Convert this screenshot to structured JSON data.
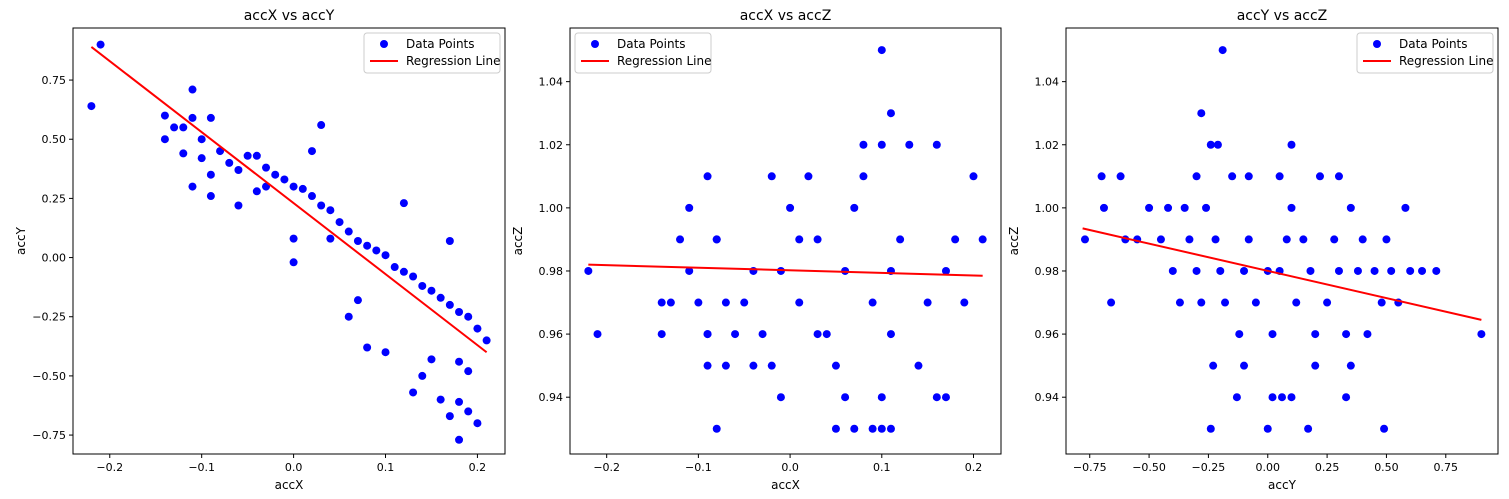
{
  "chart_data": [
    {
      "type": "scatter",
      "title": "accX vs accY",
      "xlabel": "accX",
      "ylabel": "accY",
      "xlim": [
        -0.24,
        0.23
      ],
      "ylim": [
        -0.83,
        0.97
      ],
      "xticks": [
        -0.2,
        -0.1,
        0.0,
        0.1,
        0.2
      ],
      "xtick_labels": [
        "−0.2",
        "−0.1",
        "0.0",
        "0.1",
        "0.2"
      ],
      "yticks": [
        -0.75,
        -0.5,
        -0.25,
        0.0,
        0.25,
        0.5,
        0.75
      ],
      "ytick_labels": [
        "−0.75",
        "−0.50",
        "−0.25",
        "0.00",
        "0.25",
        "0.50",
        "0.75"
      ],
      "legend_placement": "upper right",
      "series": [
        {
          "name": "Data Points",
          "kind": "points",
          "color": "#0000ff",
          "x": [
            -0.22,
            -0.21,
            -0.14,
            -0.14,
            -0.13,
            -0.12,
            -0.12,
            -0.11,
            -0.11,
            -0.1,
            -0.1,
            -0.09,
            -0.09,
            -0.08,
            -0.07,
            -0.06,
            -0.05,
            -0.04,
            -0.03,
            -0.02,
            -0.01,
            0.0,
            0.01,
            0.02,
            0.03,
            0.04,
            0.05,
            0.06,
            0.07,
            0.08,
            0.09,
            0.1,
            0.11,
            0.12,
            0.13,
            0.14,
            0.15,
            0.16,
            0.17,
            0.18,
            0.19,
            0.2,
            0.21,
            -0.11,
            -0.09,
            -0.06,
            -0.03,
            0.0,
            0.02,
            0.03,
            0.04,
            0.07,
            0.08,
            0.1,
            0.13,
            0.14,
            0.16,
            0.17,
            0.18,
            0.18,
            0.19,
            0.2,
            0.19,
            0.18,
            0.17,
            -0.04,
            0.0,
            0.06,
            0.12,
            0.15
          ],
          "y": [
            0.64,
            0.9,
            0.6,
            0.5,
            0.55,
            0.55,
            0.44,
            0.59,
            0.71,
            0.5,
            0.42,
            0.59,
            0.35,
            0.45,
            0.4,
            0.37,
            0.43,
            0.43,
            0.38,
            0.35,
            0.33,
            0.3,
            0.29,
            0.26,
            0.22,
            0.2,
            0.15,
            0.11,
            0.07,
            0.05,
            0.03,
            0.01,
            -0.04,
            -0.06,
            -0.08,
            -0.12,
            -0.14,
            -0.17,
            -0.2,
            -0.23,
            -0.25,
            -0.3,
            -0.35,
            0.3,
            0.26,
            0.22,
            0.3,
            0.08,
            0.45,
            0.56,
            0.08,
            -0.18,
            -0.38,
            -0.4,
            -0.57,
            -0.5,
            -0.6,
            -0.67,
            -0.61,
            -0.77,
            -0.65,
            -0.7,
            -0.48,
            -0.44,
            0.07,
            0.28,
            -0.02,
            -0.25,
            0.23,
            -0.43
          ]
        },
        {
          "name": "Regression Line",
          "kind": "line",
          "color": "#ff0000",
          "x": [
            -0.22,
            0.21
          ],
          "y": [
            0.89,
            -0.4
          ]
        }
      ]
    },
    {
      "type": "scatter",
      "title": "accX vs accZ",
      "xlabel": "accX",
      "ylabel": "accZ",
      "xlim": [
        -0.24,
        0.23
      ],
      "ylim": [
        0.922,
        1.057
      ],
      "xticks": [
        -0.2,
        -0.1,
        0.0,
        0.1,
        0.2
      ],
      "xtick_labels": [
        "−0.2",
        "−0.1",
        "0.0",
        "0.1",
        "0.2"
      ],
      "yticks": [
        0.94,
        0.96,
        0.98,
        1.0,
        1.02,
        1.04
      ],
      "ytick_labels": [
        "0.94",
        "0.96",
        "0.98",
        "1.00",
        "1.02",
        "1.04"
      ],
      "legend_placement": "upper left",
      "series": [
        {
          "name": "Data Points",
          "kind": "points",
          "color": "#0000ff",
          "x": [
            -0.22,
            -0.21,
            -0.14,
            -0.14,
            -0.13,
            -0.12,
            -0.11,
            -0.11,
            -0.1,
            -0.09,
            -0.09,
            -0.09,
            -0.08,
            -0.08,
            -0.07,
            -0.06,
            -0.05,
            -0.04,
            -0.03,
            -0.02,
            -0.01,
            0.0,
            0.01,
            0.02,
            0.03,
            0.04,
            0.05,
            0.06,
            0.07,
            0.08,
            0.09,
            0.1,
            0.1,
            0.11,
            0.11,
            0.12,
            0.13,
            0.14,
            0.15,
            0.16,
            0.17,
            0.18,
            0.19,
            0.2,
            0.21,
            0.05,
            0.07,
            0.1,
            0.11,
            -0.01,
            0.01,
            0.03,
            0.06,
            0.09,
            0.16,
            0.17,
            -0.09,
            -0.07,
            -0.04,
            -0.02,
            0.08,
            -0.08,
            0.1,
            0.11
          ],
          "y": [
            0.98,
            0.96,
            0.96,
            0.97,
            0.97,
            0.99,
            1.0,
            0.98,
            0.97,
            0.95,
            0.96,
            1.01,
            0.93,
            0.99,
            0.95,
            0.96,
            0.97,
            0.98,
            0.96,
            0.95,
            0.94,
            1.0,
            0.97,
            1.01,
            0.99,
            0.96,
            0.95,
            0.98,
            1.0,
            1.02,
            0.97,
            1.05,
            0.94,
            1.03,
            0.96,
            0.99,
            1.02,
            0.95,
            0.97,
            1.02,
            0.98,
            0.99,
            0.97,
            1.01,
            0.99,
            0.93,
            0.93,
            0.93,
            0.93,
            0.98,
            0.99,
            0.96,
            0.94,
            0.93,
            0.94,
            0.94,
            0.96,
            0.97,
            0.95,
            1.01,
            1.01,
            0.99,
            1.02,
            0.98
          ]
        },
        {
          "name": "Regression Line",
          "kind": "line",
          "color": "#ff0000",
          "x": [
            -0.22,
            0.21
          ],
          "y": [
            0.982,
            0.9785
          ]
        }
      ]
    },
    {
      "type": "scatter",
      "title": "accY vs accZ",
      "xlabel": "accY",
      "ylabel": "accZ",
      "xlim": [
        -0.85,
        0.97
      ],
      "ylim": [
        0.922,
        1.057
      ],
      "xticks": [
        -0.75,
        -0.5,
        -0.25,
        0.0,
        0.25,
        0.5,
        0.75
      ],
      "xtick_labels": [
        "−0.75",
        "−0.50",
        "−0.25",
        "0.00",
        "0.25",
        "0.50",
        "0.75"
      ],
      "yticks": [
        0.94,
        0.96,
        0.98,
        1.0,
        1.02,
        1.04
      ],
      "ytick_labels": [
        "0.94",
        "0.96",
        "0.98",
        "1.00",
        "1.02",
        "1.04"
      ],
      "legend_placement": "upper right",
      "series": [
        {
          "name": "Data Points",
          "kind": "points",
          "color": "#0000ff",
          "x": [
            -0.77,
            -0.7,
            -0.69,
            -0.66,
            -0.62,
            -0.6,
            -0.55,
            -0.5,
            -0.45,
            -0.42,
            -0.4,
            -0.37,
            -0.35,
            -0.33,
            -0.3,
            -0.28,
            -0.26,
            -0.24,
            -0.22,
            -0.2,
            -0.18,
            -0.15,
            -0.12,
            -0.1,
            -0.08,
            -0.05,
            0.0,
            0.02,
            0.05,
            0.08,
            0.1,
            0.12,
            0.15,
            0.18,
            0.2,
            0.22,
            0.25,
            0.28,
            0.3,
            0.33,
            0.35,
            0.38,
            0.4,
            0.42,
            0.45,
            0.48,
            0.5,
            0.52,
            0.55,
            0.58,
            0.6,
            0.65,
            0.71,
            0.9,
            -0.19,
            -0.28,
            -0.21,
            -0.13,
            0.0,
            0.02,
            0.17,
            0.33,
            0.35,
            0.49,
            -0.3,
            -0.23,
            -0.1,
            -0.08,
            0.05,
            0.1,
            0.3,
            -0.24,
            0.06,
            0.1,
            0.2
          ],
          "y": [
            0.99,
            1.01,
            1.0,
            0.97,
            1.01,
            0.99,
            0.99,
            1.0,
            0.99,
            1.0,
            0.98,
            0.97,
            1.0,
            0.99,
            0.98,
            0.97,
            1.0,
            1.02,
            0.99,
            0.98,
            0.97,
            1.01,
            0.96,
            0.98,
            0.99,
            0.97,
            0.98,
            0.96,
            0.98,
            0.99,
            1.0,
            0.97,
            0.99,
            0.98,
            0.96,
            1.01,
            0.97,
            0.99,
            0.98,
            0.96,
            1.0,
            0.98,
            0.99,
            0.96,
            0.98,
            0.97,
            0.99,
            0.98,
            0.97,
            1.0,
            0.98,
            0.98,
            0.98,
            0.96,
            1.05,
            1.03,
            1.02,
            0.94,
            0.93,
            0.94,
            0.93,
            0.94,
            0.95,
            0.93,
            1.01,
            0.95,
            0.95,
            1.01,
            1.01,
            1.02,
            1.01,
            0.93,
            0.94,
            0.94,
            0.95
          ]
        },
        {
          "name": "Regression Line",
          "kind": "line",
          "color": "#ff0000",
          "x": [
            -0.78,
            0.9
          ],
          "y": [
            0.9935,
            0.9645
          ]
        }
      ]
    }
  ]
}
